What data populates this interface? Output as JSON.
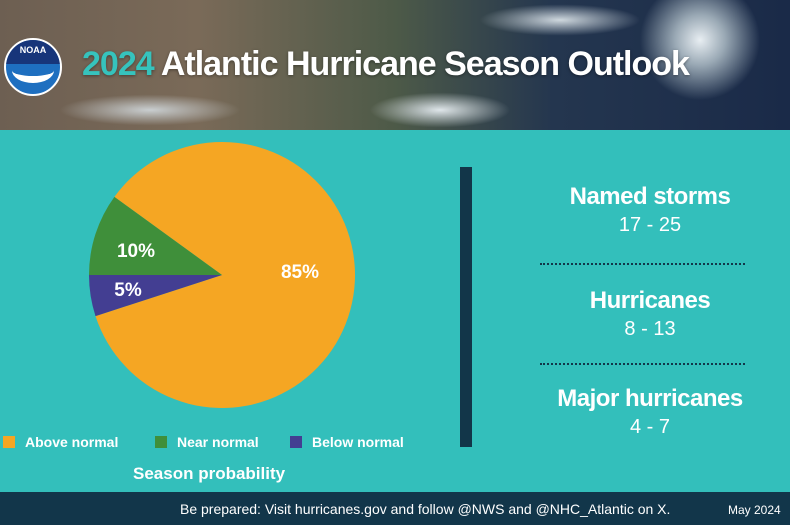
{
  "header": {
    "logo_text": "NOAA",
    "year": "2024",
    "title": "Atlantic Hurricane Season Outlook"
  },
  "chart_data": {
    "type": "pie",
    "title": "Season probability",
    "slices": [
      {
        "name": "Above normal",
        "value": 85,
        "label": "85%",
        "color": "#f5a623"
      },
      {
        "name": "Near normal",
        "value": 10,
        "label": "10%",
        "color": "#3f8f3a"
      },
      {
        "name": "Below normal",
        "value": 5,
        "label": "5%",
        "color": "#433e92"
      }
    ],
    "legend_placement": "bottom"
  },
  "stats": [
    {
      "label": "Named storms",
      "value": "17 - 25"
    },
    {
      "label": "Hurricanes",
      "value": "8 - 13"
    },
    {
      "label": "Major hurricanes",
      "value": "4 - 7"
    }
  ],
  "footer": {
    "text": "Be prepared: Visit hurricanes.gov and follow @NWS and @NHC_Atlantic on X.",
    "date": "May 2024"
  }
}
